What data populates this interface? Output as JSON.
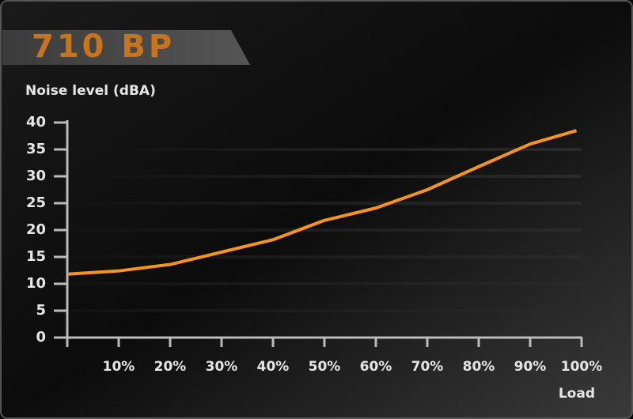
{
  "chart_data": {
    "type": "line",
    "title": "710 BP",
    "y_label": "Noise level (dBA)",
    "x_label": "Load",
    "x": [
      0,
      10,
      20,
      30,
      40,
      50,
      60,
      70,
      80,
      90,
      99
    ],
    "series": [
      {
        "name": "Noise",
        "color": "#f7941d",
        "values": [
          11.8,
          12.4,
          13.6,
          15.9,
          18.2,
          21.8,
          24.1,
          27.5,
          31.8,
          36,
          38.5
        ]
      }
    ],
    "xlim": [
      0,
      100
    ],
    "xticks": [
      {
        "value": 10,
        "label": "10%"
      },
      {
        "value": 20,
        "label": "20%"
      },
      {
        "value": 30,
        "label": "30%"
      },
      {
        "value": 40,
        "label": "40%"
      },
      {
        "value": 50,
        "label": "50%"
      },
      {
        "value": 60,
        "label": "60%"
      },
      {
        "value": 70,
        "label": "70%"
      },
      {
        "value": 80,
        "label": "80%"
      },
      {
        "value": 90,
        "label": "90%"
      },
      {
        "value": 100,
        "label": "100%"
      }
    ],
    "ylim": [
      0,
      40
    ],
    "yticks": [
      0,
      5,
      10,
      15,
      20,
      25,
      30,
      35,
      40
    ],
    "grid": true
  }
}
